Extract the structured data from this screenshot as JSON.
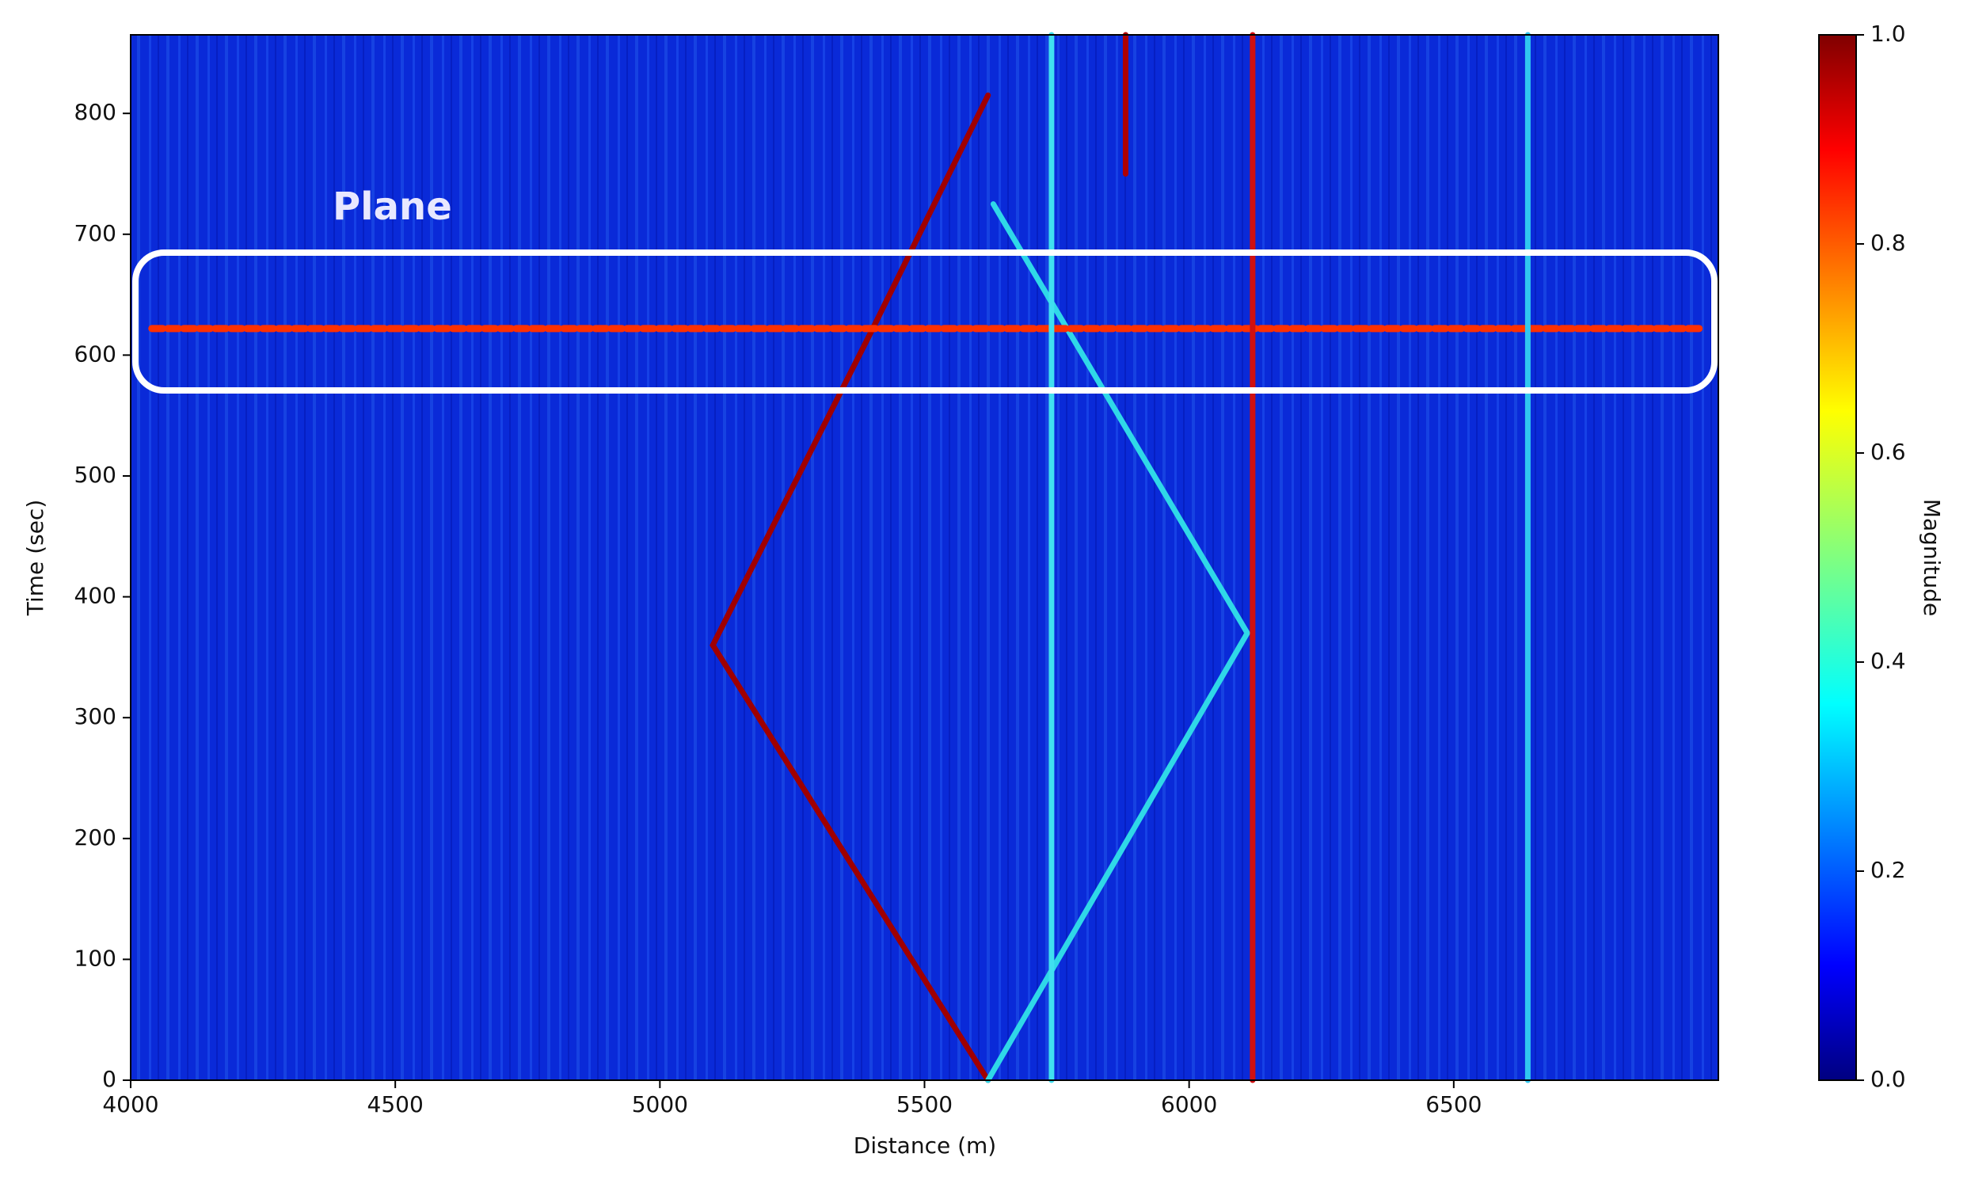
{
  "chart_data": {
    "type": "heatmap",
    "xlabel": "Distance (m)",
    "ylabel": "Time (sec)",
    "xlim": [
      4000,
      7000
    ],
    "ylim": [
      0,
      865
    ],
    "xticks": [
      4000,
      4500,
      5000,
      5500,
      6000,
      6500
    ],
    "yticks": [
      0,
      100,
      200,
      300,
      400,
      500,
      600,
      700,
      800
    ],
    "background": "#0a2ad8",
    "series": [
      {
        "color": "#a00000",
        "x": [
          5620,
          5100,
          5400,
          5620
        ],
        "values": [
          0,
          360,
          620,
          815
        ]
      },
      {
        "color": "#2fd8e8",
        "x": [
          5620,
          6110,
          5630
        ],
        "values": [
          0,
          370,
          725
        ]
      },
      {
        "color": "#ff3000",
        "x": [
          4040,
          6970
        ],
        "values": [
          622,
          622
        ]
      },
      {
        "color": "#40e0f0",
        "x": [
          5740,
          5740
        ],
        "values": [
          0,
          865
        ]
      },
      {
        "color": "#d01010",
        "x": [
          6120,
          6120
        ],
        "values": [
          0,
          865
        ]
      },
      {
        "color": "#b00000",
        "x": [
          5880,
          5880
        ],
        "values": [
          750,
          865
        ]
      },
      {
        "color": "#30c8f0",
        "x": [
          6640,
          6640
        ],
        "values": [
          0,
          865
        ]
      }
    ],
    "annotation": "Plane",
    "colorbar": {
      "label": "Magnitude",
      "colormap": "jet",
      "ylim": [
        0,
        1
      ],
      "yticks": [
        {
          "value": 0,
          "label": "0.0"
        },
        {
          "value": 0.2,
          "label": "0.2"
        },
        {
          "value": 0.4,
          "label": "0.4"
        },
        {
          "value": 0.6,
          "label": "0.6"
        },
        {
          "value": 0.8,
          "label": "0.8"
        },
        {
          "value": 1,
          "label": "1.0"
        }
      ]
    }
  }
}
